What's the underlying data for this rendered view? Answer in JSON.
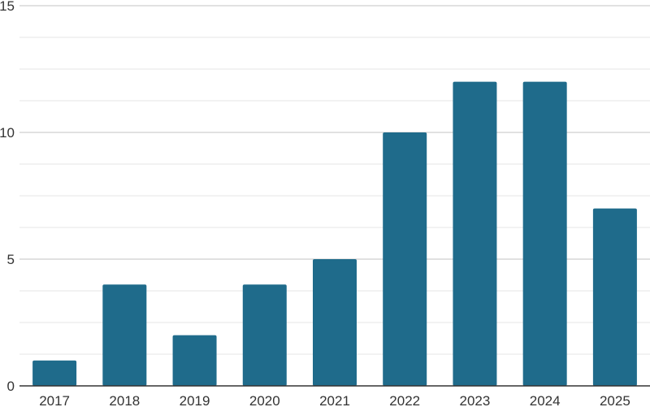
{
  "chart_data": {
    "type": "bar",
    "title": "",
    "xlabel": "",
    "ylabel": "",
    "categories": [
      "2017",
      "2018",
      "2019",
      "2020",
      "2021",
      "2022",
      "2023",
      "2024",
      "2025"
    ],
    "values": [
      1,
      4,
      2,
      4,
      5,
      10,
      12,
      12,
      7
    ],
    "ylim": [
      0,
      15
    ],
    "y_ticks": [
      0,
      5,
      10,
      15
    ],
    "y_tick_labels": [
      "0",
      "5",
      "10",
      "15"
    ],
    "minor_gridlines_per_interval": 3,
    "grid": true,
    "legend": "none",
    "colors": {
      "bar": "#1f6b8b",
      "major_grid": "#cfcfcf",
      "minor_grid": "#e6e6e6",
      "axis": "#333333",
      "text": "#333333"
    }
  }
}
